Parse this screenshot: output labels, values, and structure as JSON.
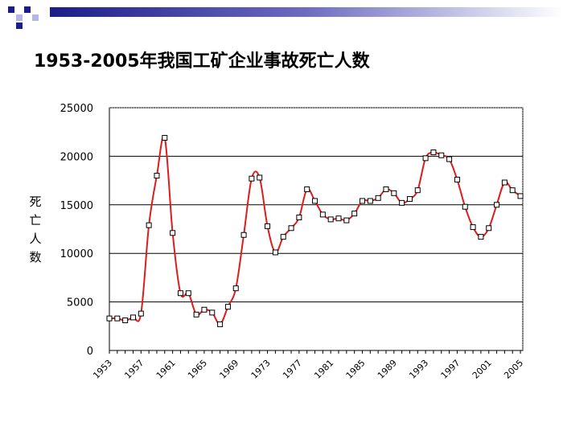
{
  "slide": {
    "title": "1953-2005年我国工矿企业事故死亡人数",
    "accent_colors": {
      "square_dark": "#1d1d8a",
      "square_light": "#b7b7e6",
      "band_start": "#1d1d8a"
    }
  },
  "chart_data": {
    "type": "line",
    "title": "1953-2005年我国工矿企业事故死亡人数",
    "ylabel": "死亡人数",
    "xlabel": "",
    "ylim": [
      0,
      25000
    ],
    "xlim": [
      1953,
      2005.3
    ],
    "yticks": [
      "25000",
      "20000",
      "15000",
      "10000",
      "5000",
      "0"
    ],
    "ytick_values": [
      25000,
      20000,
      15000,
      10000,
      5000,
      0
    ],
    "xticks": [
      "1953",
      "1957",
      "1961",
      "1965",
      "1969",
      "1973",
      "1977",
      "1981",
      "1985",
      "1989",
      "1993",
      "1997",
      "2001",
      "2005"
    ],
    "xtick_values": [
      1953,
      1957,
      1961,
      1965,
      1969,
      1973,
      1977,
      1981,
      1985,
      1989,
      1993,
      1997,
      2001,
      2005
    ],
    "grid": true,
    "line_color": "#dd1c1c",
    "series": [
      {
        "x": [
          1953,
          1954,
          1955,
          1956,
          1957,
          1958,
          1959,
          1960,
          1961,
          1962,
          1963,
          1964,
          1965,
          1966,
          1967,
          1968,
          1969,
          1970,
          1971,
          1972,
          1973,
          1974,
          1975,
          1976,
          1977,
          1978,
          1979,
          1980,
          1981,
          1982,
          1983,
          1984,
          1985,
          1986,
          1987,
          1988,
          1989,
          1990,
          1991,
          1992,
          1993,
          1994,
          1995,
          1996,
          1997,
          1998,
          1999,
          2000,
          2001,
          2002,
          2003,
          2004,
          2005
        ],
        "values": [
          3300,
          3300,
          3100,
          3400,
          3800,
          12900,
          18000,
          21900,
          12100,
          5900,
          5900,
          3700,
          4200,
          3900,
          2700,
          4500,
          6400,
          11900,
          17700,
          17800,
          12800,
          10100,
          11700,
          12600,
          13700,
          16600,
          15400,
          14000,
          13500,
          13600,
          13400,
          14100,
          15400,
          15400,
          15700,
          16600,
          16200,
          15200,
          15600,
          16500,
          19800,
          20400,
          20100,
          19700,
          17600,
          14800,
          12700,
          11700,
          12600,
          15000,
          17300,
          16500,
          15900
        ]
      }
    ]
  }
}
